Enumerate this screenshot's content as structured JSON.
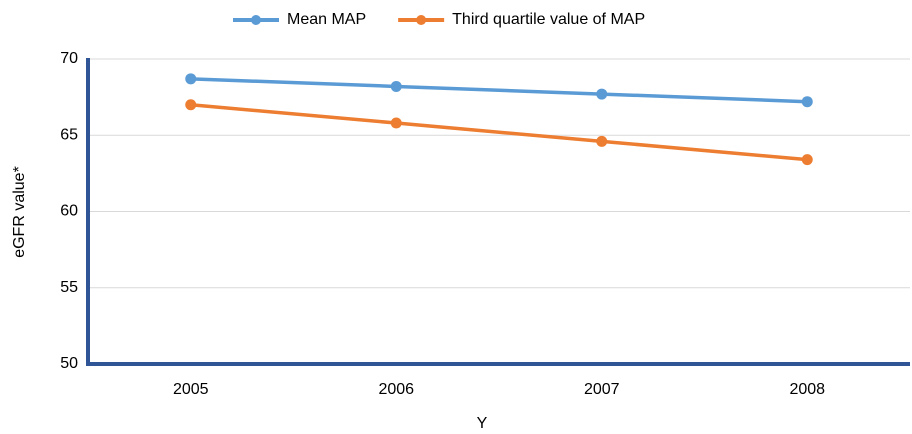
{
  "chart_data": {
    "type": "line",
    "categories": [
      "2005",
      "2006",
      "2007",
      "2008"
    ],
    "series": [
      {
        "name": "Mean MAP",
        "color": "#5b9bd5",
        "values": [
          68.7,
          68.2,
          67.7,
          67.2
        ]
      },
      {
        "name": "Third quartile value of MAP",
        "color": "#ed7d31",
        "values": [
          67.0,
          65.8,
          64.6,
          63.4
        ]
      }
    ],
    "xlabel": "Y",
    "ylabel": "eGFR value*",
    "ylim": [
      50,
      70
    ],
    "yticks": [
      50,
      55,
      60,
      65,
      70
    ],
    "grid": true,
    "legend": "top"
  }
}
